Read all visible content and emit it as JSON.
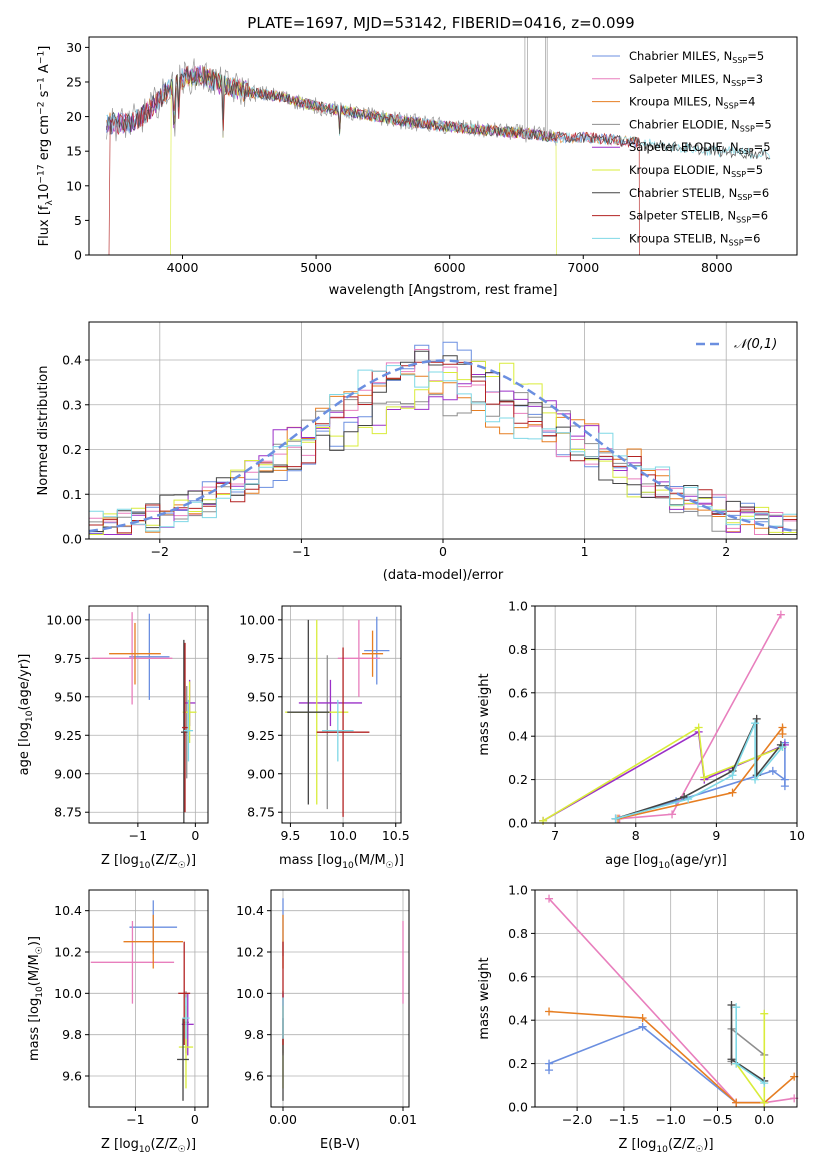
{
  "figure_title": "PLATE=1697, MJD=53142, FIBERID=0416, z=0.099",
  "colors": {
    "Chabrier MILES": "#6b8fe0",
    "Salpeter MILES": "#e87fbd",
    "Kroupa MILES": "#e67e22",
    "Chabrier ELODIE": "#8e8e8e",
    "Salpeter ELODIE": "#9b30c8",
    "Kroupa ELODIE": "#d9ec3a",
    "Chabrier STELIB": "#444444",
    "Salpeter STELIB": "#b22222",
    "Kroupa STELIB": "#7fd8e6"
  },
  "legend": [
    {
      "model": "Chabrier MILES",
      "n": "5"
    },
    {
      "model": "Salpeter MILES",
      "n": "3"
    },
    {
      "model": "Kroupa MILES",
      "n": "4"
    },
    {
      "model": "Chabrier ELODIE",
      "n": "5"
    },
    {
      "model": "Salpeter ELODIE",
      "n": "5"
    },
    {
      "model": "Kroupa ELODIE",
      "n": "5"
    },
    {
      "model": "Chabrier STELIB",
      "n": "6"
    },
    {
      "model": "Salpeter STELIB",
      "n": "6"
    },
    {
      "model": "Kroupa STELIB",
      "n": "6"
    }
  ],
  "legend_prefix": "N",
  "legend_sub": "SSP",
  "chart_data": [
    {
      "id": "spectrum",
      "type": "line",
      "xlabel": "wavelength [Angstrom, rest frame]",
      "ylabel_parts": [
        "Flux [f",
        "λ",
        "10",
        "−17",
        " erg cm",
        "−2",
        " s",
        "−1",
        " A",
        "−1",
        "]"
      ],
      "xlim": [
        3300,
        8600
      ],
      "ylim": [
        0,
        31.5
      ],
      "xticks": [
        4000,
        5000,
        6000,
        7000,
        8000
      ],
      "yticks": [
        0,
        5,
        10,
        15,
        20,
        25,
        30
      ],
      "continuum": {
        "x": [
          3450,
          3600,
          3700,
          3800,
          3900,
          4000,
          4100,
          4200,
          4300,
          4500,
          4700,
          5000,
          5300,
          5600,
          6000,
          6300,
          6600,
          6800,
          7000,
          7300,
          7500,
          8000,
          8400
        ],
        "y": [
          19,
          19,
          20,
          22,
          24,
          25.5,
          26,
          25.5,
          24.5,
          23.5,
          23,
          21.5,
          20.5,
          19.5,
          18.5,
          18,
          17.5,
          17,
          17,
          16.5,
          16,
          15,
          14.5
        ]
      },
      "emission_lines": [
        6563,
        6583,
        6730,
        6717
      ],
      "dropout": {
        "Kroupa ELODIE": [
          3910,
          6800
        ],
        "Salpeter STELIB": [
          3450,
          7420
        ]
      }
    },
    {
      "id": "residuals",
      "type": "step",
      "xlabel": "(data-model)/error",
      "ylabel": "Normed distribution",
      "xlim": [
        -2.5,
        2.5
      ],
      "ylim": [
        0,
        0.485
      ],
      "xticks": [
        -2,
        -1,
        0,
        1,
        2
      ],
      "yticks": [
        0.0,
        0.1,
        0.2,
        0.3,
        0.4
      ],
      "reference": {
        "label": "𝒩(0,1)",
        "mean": 0,
        "sigma": 1
      }
    },
    {
      "id": "age_vs_Z",
      "type": "errorbar",
      "xlabel_parts": [
        "Z [log",
        "10",
        "(Z/Z",
        "☉",
        ")]"
      ],
      "ylabel_parts": [
        "age  [log",
        "10",
        "(age/yr)]"
      ],
      "xlim": [
        -1.85,
        0.22
      ],
      "ylim": [
        8.68,
        10.09
      ],
      "xticks": [
        -1,
        0
      ],
      "yticks": [
        8.75,
        9.0,
        9.25,
        9.5,
        9.75,
        10.0
      ],
      "points": [
        {
          "model": "Chabrier MILES",
          "x": -0.8,
          "xerr": 0.35,
          "y": 9.76,
          "yerr": 0.28
        },
        {
          "model": "Salpeter MILES",
          "x": -1.1,
          "xerr": 0.7,
          "y": 9.75,
          "yerr": 0.3
        },
        {
          "model": "Kroupa MILES",
          "x": -1.05,
          "xerr": 0.45,
          "y": 9.78,
          "yerr": 0.2
        },
        {
          "model": "Chabrier ELODIE",
          "x": -0.15,
          "xerr": 0.05,
          "y": 9.27,
          "yerr": 0.3
        },
        {
          "model": "Salpeter ELODIE",
          "x": -0.1,
          "xerr": 0.1,
          "y": 9.46,
          "yerr": 0.15
        },
        {
          "model": "Kroupa ELODIE",
          "x": -0.1,
          "xerr": 0.12,
          "y": 9.4,
          "yerr": 0.2
        },
        {
          "model": "Chabrier STELIB",
          "x": -0.2,
          "xerr": 0.05,
          "y": 9.27,
          "yerr": 0.6
        },
        {
          "model": "Salpeter STELIB",
          "x": -0.18,
          "xerr": 0.05,
          "y": 9.3,
          "yerr": 0.55
        },
        {
          "model": "Kroupa STELIB",
          "x": -0.12,
          "xerr": 0.08,
          "y": 9.28,
          "yerr": 0.2
        }
      ]
    },
    {
      "id": "age_vs_mass",
      "type": "errorbar",
      "xlabel_parts": [
        "mass [log",
        "10",
        "(M/M",
        "☉",
        ")]"
      ],
      "xlim": [
        9.42,
        10.55
      ],
      "ylim": [
        8.68,
        10.09
      ],
      "xticks": [
        9.5,
        10.0,
        10.5
      ],
      "yticks": [
        8.75,
        9.0,
        9.25,
        9.5,
        9.75,
        10.0
      ],
      "points": [
        {
          "model": "Chabrier MILES",
          "x": 10.32,
          "xerr": 0.12,
          "y": 9.8,
          "yerr": 0.22
        },
        {
          "model": "Salpeter MILES",
          "x": 10.15,
          "xerr": 0.2,
          "y": 9.75,
          "yerr": 0.25
        },
        {
          "model": "Kroupa MILES",
          "x": 10.28,
          "xerr": 0.1,
          "y": 9.78,
          "yerr": 0.15
        },
        {
          "model": "Chabrier ELODIE",
          "x": 9.85,
          "xerr": 0.1,
          "y": 9.27,
          "yerr": 0.5
        },
        {
          "model": "Salpeter ELODIE",
          "x": 9.88,
          "xerr": 0.3,
          "y": 9.46,
          "yerr": 0.15
        },
        {
          "model": "Kroupa ELODIE",
          "x": 9.75,
          "xerr": 0.3,
          "y": 9.4,
          "yerr": 0.6
        },
        {
          "model": "Chabrier STELIB",
          "x": 9.67,
          "xerr": 0.2,
          "y": 9.4,
          "yerr": 0.6
        },
        {
          "model": "Salpeter STELIB",
          "x": 10.0,
          "xerr": 0.25,
          "y": 9.27,
          "yerr": 0.55
        },
        {
          "model": "Kroupa STELIB",
          "x": 9.95,
          "xerr": 0.15,
          "y": 9.28,
          "yerr": 0.2
        }
      ]
    },
    {
      "id": "weight_vs_age",
      "type": "line",
      "xlabel_parts": [
        "age  [log",
        "10",
        "(age/yr)]"
      ],
      "ylabel": "mass weight",
      "xlim": [
        6.75,
        10.0
      ],
      "ylim": [
        0.0,
        1.0
      ],
      "xticks": [
        7,
        8,
        9,
        10
      ],
      "yticks": [
        0.0,
        0.2,
        0.4,
        0.6,
        0.8,
        1.0
      ],
      "series": [
        {
          "model": "Chabrier MILES",
          "x": [
            7.75,
            8.5,
            9.7,
            9.85,
            9.85,
            9.85
          ],
          "y": [
            0.02,
            0.1,
            0.24,
            0.2,
            0.37,
            0.17
          ]
        },
        {
          "model": "Salpeter MILES",
          "x": [
            7.8,
            8.45,
            9.8
          ],
          "y": [
            0.02,
            0.04,
            0.96
          ]
        },
        {
          "model": "Kroupa MILES",
          "x": [
            7.78,
            9.2,
            9.82,
            9.82
          ],
          "y": [
            0.02,
            0.14,
            0.44,
            0.41
          ]
        },
        {
          "model": "Salpeter ELODIE",
          "x": [
            6.85,
            8.78,
            8.85,
            9.85
          ],
          "y": [
            0.01,
            0.42,
            0.2,
            0.36
          ]
        },
        {
          "model": "Kroupa ELODIE",
          "x": [
            6.85,
            8.78,
            8.85,
            9.82
          ],
          "y": [
            0.01,
            0.44,
            0.21,
            0.35
          ]
        },
        {
          "model": "Chabrier STELIB",
          "x": [
            7.75,
            8.6,
            9.2,
            9.5,
            9.5,
            9.8
          ],
          "y": [
            0.02,
            0.12,
            0.24,
            0.48,
            0.22,
            0.36
          ]
        },
        {
          "model": "Kroupa STELIB",
          "x": [
            7.75,
            8.65,
            9.2,
            9.48,
            9.48,
            9.82
          ],
          "y": [
            0.02,
            0.11,
            0.22,
            0.46,
            0.2,
            0.35
          ]
        }
      ]
    },
    {
      "id": "mass_vs_Z",
      "type": "errorbar",
      "xlabel_parts": [
        "Z [log",
        "10",
        "(Z/Z",
        "☉",
        ")]"
      ],
      "ylabel_parts": [
        "mass [log",
        "10",
        "(M/M",
        "☉",
        ")]"
      ],
      "xlim": [
        -1.78,
        0.22
      ],
      "ylim": [
        9.45,
        10.5
      ],
      "xticks": [
        -1,
        0
      ],
      "yticks": [
        9.6,
        9.8,
        10.0,
        10.2,
        10.4
      ],
      "points": [
        {
          "model": "Chabrier MILES",
          "x": -0.7,
          "xerr": 0.4,
          "y": 10.32,
          "yerr": 0.13
        },
        {
          "model": "Salpeter MILES",
          "x": -1.05,
          "xerr": 0.7,
          "y": 10.15,
          "yerr": 0.2
        },
        {
          "model": "Kroupa MILES",
          "x": -0.7,
          "xerr": 0.5,
          "y": 10.25,
          "yerr": 0.13
        },
        {
          "model": "Chabrier ELODIE",
          "x": -0.15,
          "xerr": 0.05,
          "y": 9.86,
          "yerr": 0.15
        },
        {
          "model": "Salpeter ELODIE",
          "x": -0.12,
          "xerr": 0.1,
          "y": 9.85,
          "yerr": 0.15
        },
        {
          "model": "Kroupa ELODIE",
          "x": -0.15,
          "xerr": 0.12,
          "y": 9.74,
          "yerr": 0.2
        },
        {
          "model": "Chabrier STELIB",
          "x": -0.2,
          "xerr": 0.1,
          "y": 9.68,
          "yerr": 0.2
        },
        {
          "model": "Salpeter STELIB",
          "x": -0.18,
          "xerr": 0.1,
          "y": 10.0,
          "yerr": 0.25
        },
        {
          "model": "Kroupa STELIB",
          "x": -0.15,
          "xerr": 0.06,
          "y": 9.88,
          "yerr": 0.1
        }
      ]
    },
    {
      "id": "mass_vs_ebv",
      "type": "errorbar",
      "xlabel": "E(B-V)",
      "xlim": [
        -0.001,
        0.0105
      ],
      "ylim": [
        9.45,
        10.5
      ],
      "xticks": [
        0.0,
        0.01
      ],
      "yticks": [
        9.6,
        9.8,
        10.0,
        10.2,
        10.4
      ],
      "points": [
        {
          "model": "Chabrier MILES",
          "x": 0.0,
          "y": 10.32,
          "yerr": 0.14
        },
        {
          "model": "Salpeter MILES",
          "x": 0.01,
          "y": 10.15,
          "yerr": 0.2
        },
        {
          "model": "Kroupa MILES",
          "x": 0.0,
          "y": 10.25,
          "yerr": 0.13
        },
        {
          "model": "Chabrier ELODIE",
          "x": 0.0,
          "y": 9.86,
          "yerr": 0.15
        },
        {
          "model": "Salpeter ELODIE",
          "x": 0.0,
          "y": 9.85,
          "yerr": 0.15
        },
        {
          "model": "Kroupa ELODIE",
          "x": 0.0,
          "y": 9.74,
          "yerr": 0.2
        },
        {
          "model": "Chabrier STELIB",
          "x": 0.0,
          "y": 9.68,
          "yerr": 0.2
        },
        {
          "model": "Salpeter STELIB",
          "x": 0.0,
          "y": 10.0,
          "yerr": 0.25
        },
        {
          "model": "Kroupa STELIB",
          "x": 0.0,
          "y": 9.88,
          "yerr": 0.1
        }
      ]
    },
    {
      "id": "weight_vs_Z",
      "type": "line",
      "xlabel_parts": [
        "Z [log",
        "10",
        "(Z/Z",
        "☉",
        ")]"
      ],
      "ylabel": "mass weight",
      "xlim": [
        -2.45,
        0.35
      ],
      "ylim": [
        0.0,
        1.0
      ],
      "xticks": [
        -2.0,
        -1.5,
        -1.0,
        -0.5,
        0.0
      ],
      "yticks": [
        0.0,
        0.2,
        0.4,
        0.6,
        0.8,
        1.0
      ],
      "series": [
        {
          "model": "Chabrier MILES",
          "x": [
            -2.3,
            -2.3,
            -1.3,
            -0.3,
            0.0
          ],
          "y": [
            0.17,
            0.2,
            0.37,
            0.02,
            0.02
          ]
        },
        {
          "model": "Salpeter MILES",
          "x": [
            -2.3,
            -0.3,
            0.0,
            0.32
          ],
          "y": [
            0.96,
            0.02,
            0.02,
            0.04
          ]
        },
        {
          "model": "Kroupa MILES",
          "x": [
            -2.3,
            -1.3,
            -0.3,
            0.0,
            0.32
          ],
          "y": [
            0.44,
            0.41,
            0.02,
            0.02,
            0.14
          ]
        },
        {
          "model": "Chabrier ELODIE",
          "x": [
            -0.35,
            -0.35,
            0.0
          ],
          "y": [
            0.21,
            0.36,
            0.24
          ]
        },
        {
          "model": "Kroupa ELODIE",
          "x": [
            -0.3,
            0.0,
            0.0
          ],
          "y": [
            0.2,
            0.02,
            0.43
          ]
        },
        {
          "model": "Chabrier STELIB",
          "x": [
            -0.35,
            -0.35,
            0.0
          ],
          "y": [
            0.47,
            0.22,
            0.12
          ]
        },
        {
          "model": "Kroupa STELIB",
          "x": [
            -0.3,
            -0.3,
            0.0
          ],
          "y": [
            0.46,
            0.2,
            0.11
          ]
        }
      ]
    }
  ]
}
